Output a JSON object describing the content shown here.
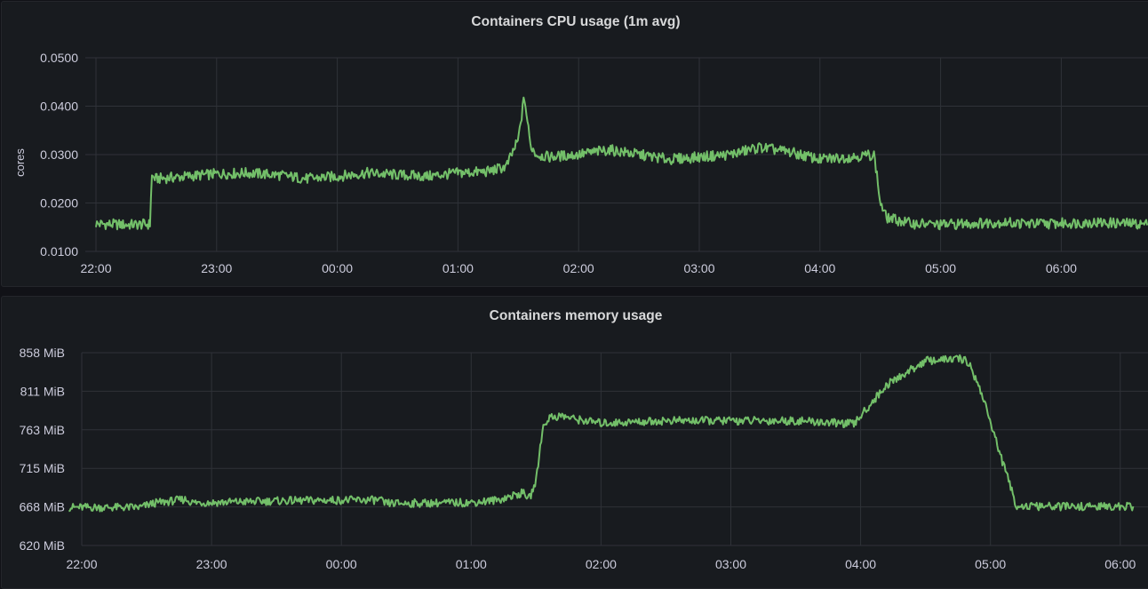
{
  "chart_data": [
    {
      "type": "line",
      "title": "Containers CPU usage (1m avg)",
      "ylabel": "cores",
      "xlabel": "",
      "yticks": [
        "0.0100",
        "0.0200",
        "0.0300",
        "0.0400",
        "0.0500"
      ],
      "ylim": [
        0.01,
        0.05
      ],
      "xticks": [
        "22:00",
        "23:00",
        "00:00",
        "01:00",
        "02:00",
        "03:00",
        "04:00",
        "05:00",
        "06:00"
      ],
      "xlim_hours": [
        -0.1,
        8.83
      ],
      "grid": true,
      "series": [
        {
          "color": "#73bf69",
          "x_hours": [
            0,
            0.25,
            0.45,
            0.46,
            0.5,
            0.75,
            1.0,
            1.25,
            1.5,
            1.75,
            2.0,
            2.25,
            2.5,
            2.75,
            3.0,
            3.25,
            3.4,
            3.5,
            3.55,
            3.6,
            3.65,
            3.75,
            4.0,
            4.25,
            4.5,
            4.75,
            5.0,
            5.25,
            5.5,
            5.75,
            6.0,
            6.25,
            6.45,
            6.5,
            6.55,
            6.75,
            7.0,
            7.25,
            7.5,
            7.75,
            8.0,
            8.25,
            8.5,
            8.83
          ],
          "values": [
            0.0157,
            0.0155,
            0.0156,
            0.0255,
            0.025,
            0.0255,
            0.026,
            0.0262,
            0.0258,
            0.025,
            0.0255,
            0.0262,
            0.0258,
            0.0255,
            0.0262,
            0.0265,
            0.0275,
            0.033,
            0.042,
            0.032,
            0.03,
            0.0295,
            0.03,
            0.031,
            0.03,
            0.029,
            0.0295,
            0.03,
            0.0315,
            0.0305,
            0.029,
            0.0295,
            0.03,
            0.02,
            0.017,
            0.0158,
            0.0155,
            0.0158,
            0.016,
            0.0157,
            0.0158,
            0.016,
            0.0158,
            0.0155
          ]
        }
      ]
    },
    {
      "type": "line",
      "title": "Containers memory usage",
      "ylabel": "",
      "xlabel": "",
      "yticks": [
        "620 MiB",
        "668 MiB",
        "715 MiB",
        "763 MiB",
        "811 MiB",
        "858 MiB"
      ],
      "ylim_mib": [
        620,
        858
      ],
      "xticks": [
        "22:00",
        "23:00",
        "00:00",
        "01:00",
        "02:00",
        "03:00",
        "04:00",
        "05:00",
        "06:00"
      ],
      "xlim_hours": [
        -0.1,
        8.1
      ],
      "grid": true,
      "series": [
        {
          "color": "#73bf69",
          "x_hours": [
            -0.1,
            0.45,
            0.55,
            0.8,
            0.85,
            1.0,
            1.5,
            2.0,
            2.3,
            2.33,
            2.5,
            3.0,
            3.2,
            3.4,
            3.45,
            3.5,
            3.55,
            3.6,
            3.7,
            3.8,
            4.0,
            4.5,
            5.0,
            5.5,
            5.95,
            6.0,
            6.2,
            6.5,
            6.7,
            6.8,
            6.85,
            6.95,
            7.05,
            7.2,
            7.3,
            8.1
          ],
          "values_mib": [
            667,
            667,
            672,
            677,
            673,
            673,
            675,
            676,
            676,
            672,
            672,
            673,
            676,
            685,
            678,
            700,
            765,
            778,
            780,
            776,
            771,
            774,
            774,
            774,
            770,
            780,
            818,
            848,
            850,
            850,
            840,
            800,
            745,
            669,
            668,
            668
          ]
        }
      ]
    }
  ]
}
